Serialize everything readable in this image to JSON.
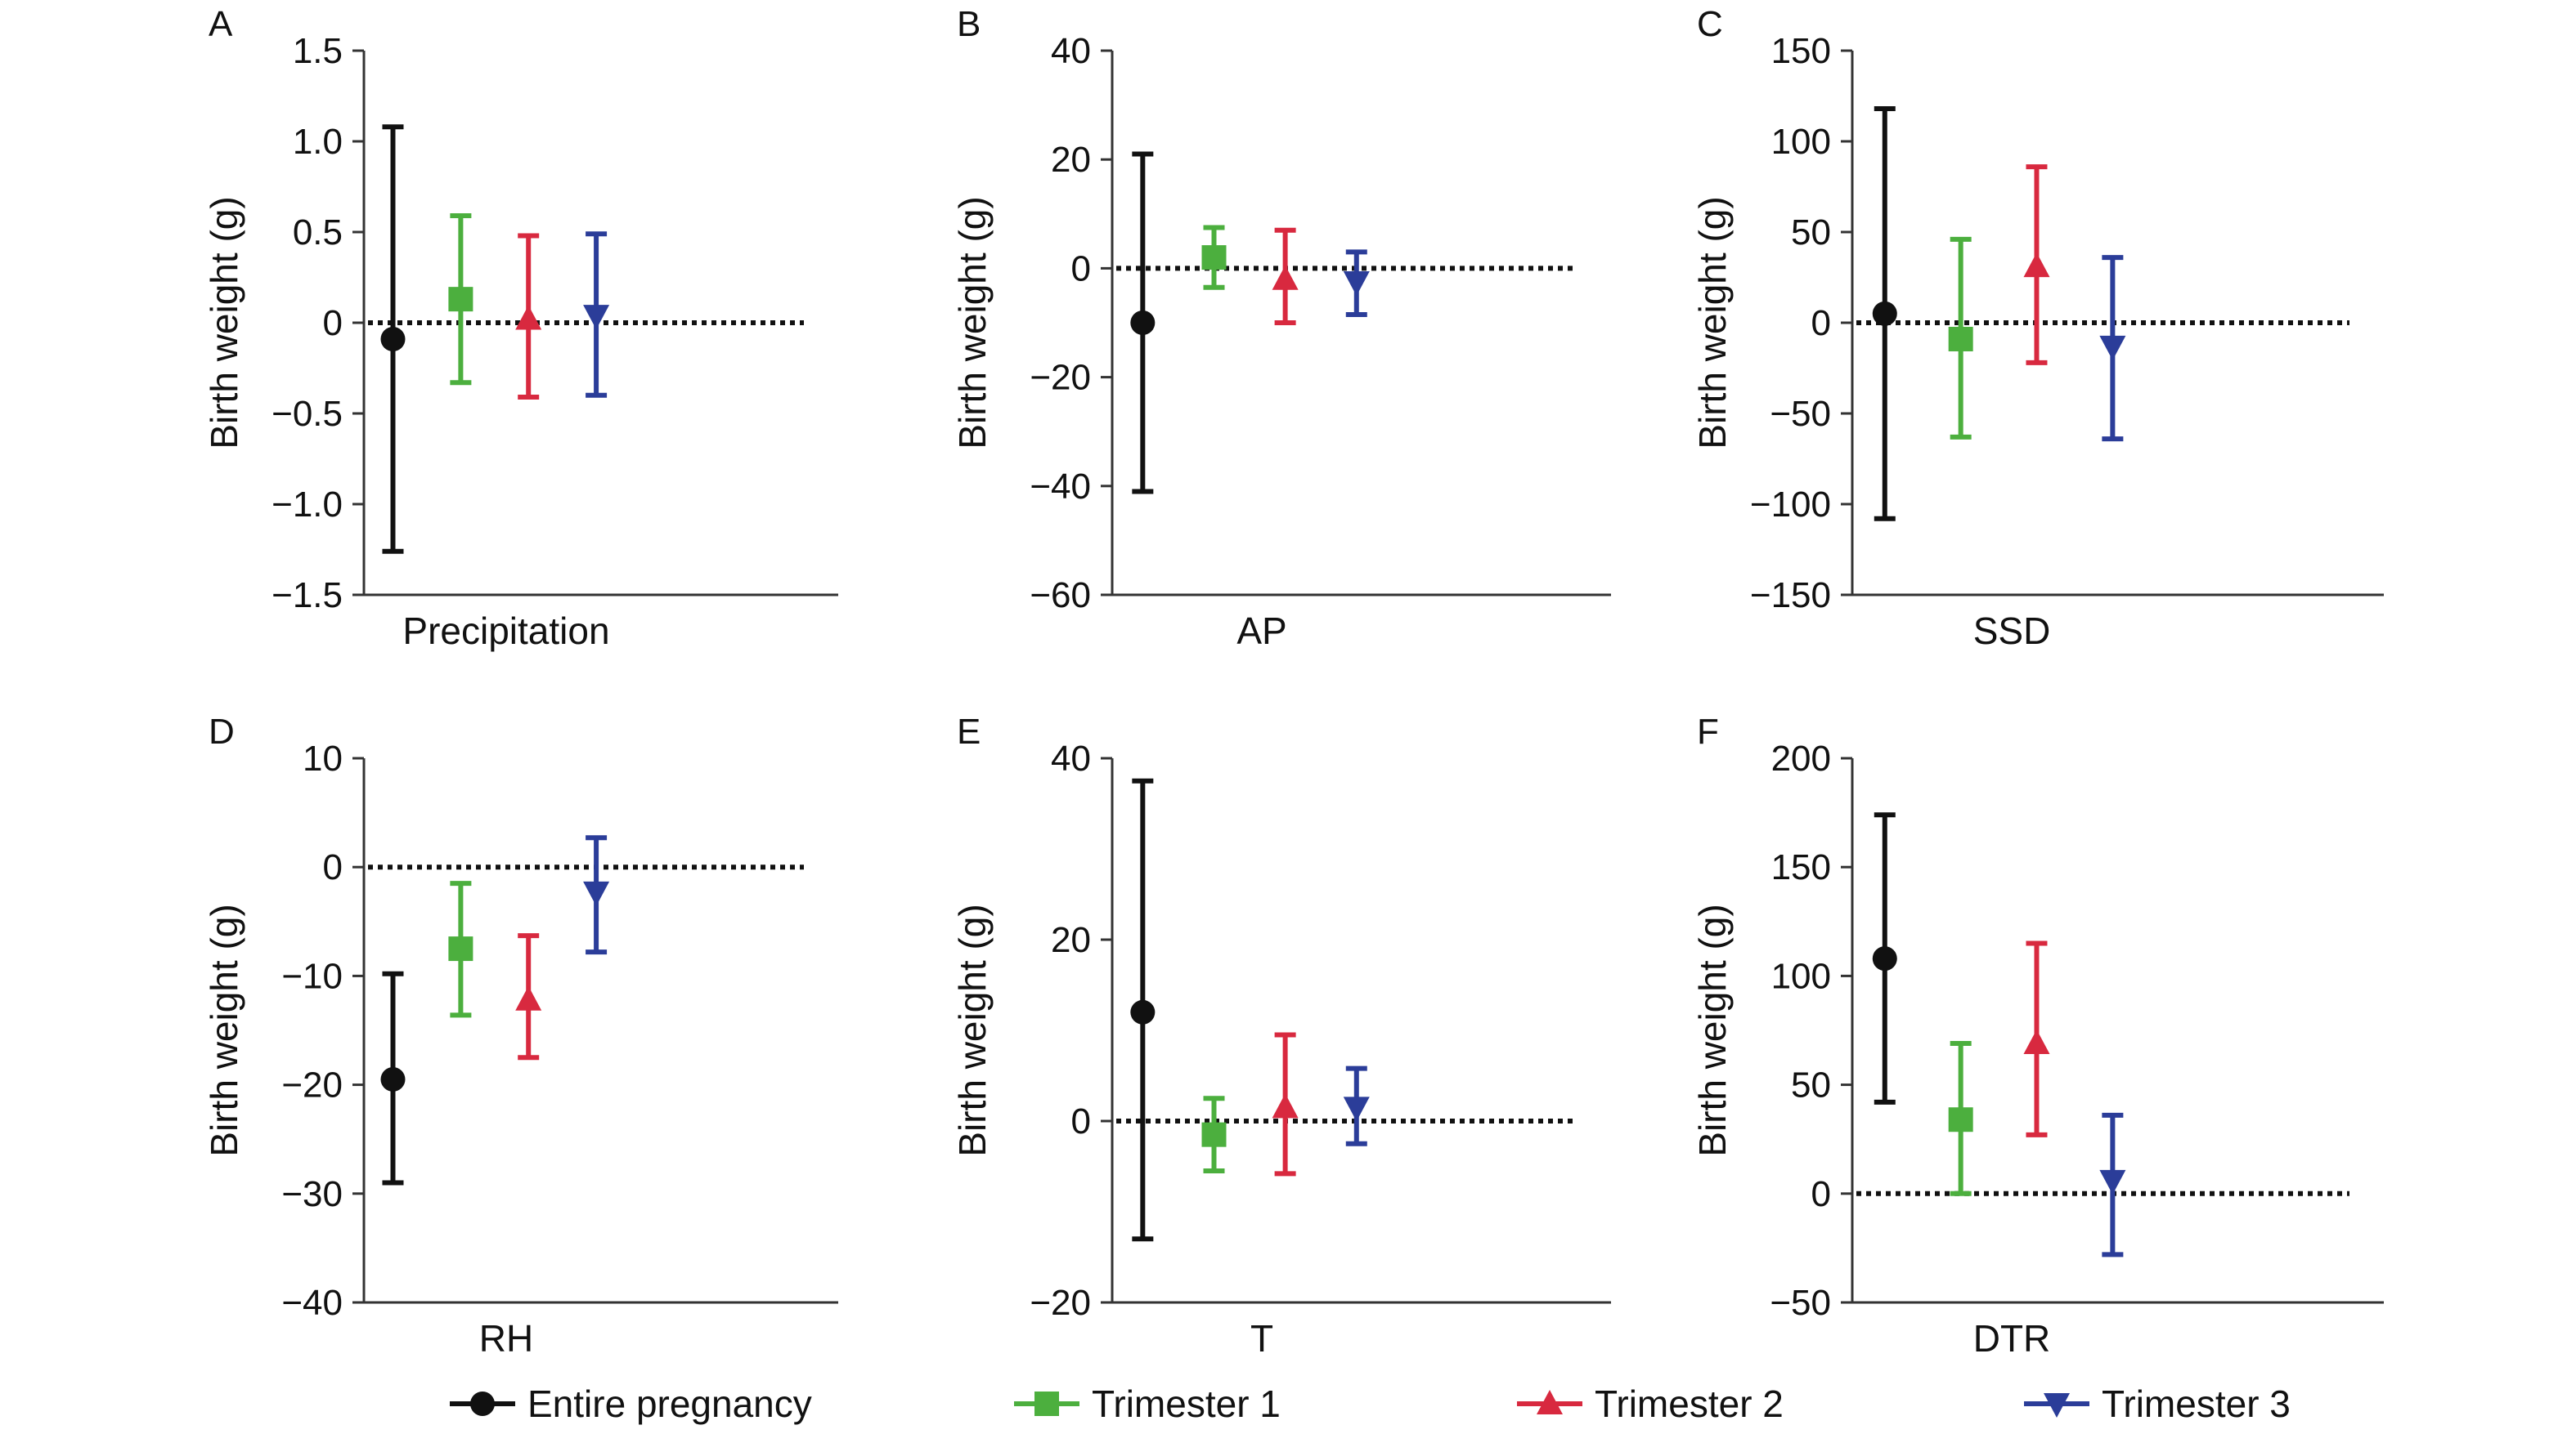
{
  "legend": [
    {
      "label": "Entire pregnancy",
      "color": "#111111",
      "marker": "circle"
    },
    {
      "label": "Trimester 1",
      "color": "#4caf3e",
      "marker": "square"
    },
    {
      "label": "Trimester 2",
      "color": "#d8293f",
      "marker": "triangle-up"
    },
    {
      "label": "Trimester 3",
      "color": "#2b3d99",
      "marker": "triangle-down"
    }
  ],
  "chart_data": [
    {
      "type": "scatter",
      "panel": "A",
      "xlabel": "Precipitation",
      "ylabel": "Birth weight (g)",
      "ylim": [
        -1.5,
        1.5
      ],
      "yticks": [
        "1.5",
        "1.0",
        "0.5",
        "0",
        "−0.5",
        "−1.0",
        "−1.5"
      ],
      "ytick_values": [
        1.5,
        1.0,
        0.5,
        0,
        -0.5,
        -1.0,
        -1.5
      ],
      "reference_line": 0,
      "series": [
        {
          "name": "Entire pregnancy",
          "estimate": -0.09,
          "lower": -1.26,
          "upper": 1.08
        },
        {
          "name": "Trimester 1",
          "estimate": 0.13,
          "lower": -0.33,
          "upper": 0.59
        },
        {
          "name": "Trimester 2",
          "estimate": 0.02,
          "lower": -0.41,
          "upper": 0.48
        },
        {
          "name": "Trimester 3",
          "estimate": 0.04,
          "lower": -0.4,
          "upper": 0.49
        }
      ]
    },
    {
      "type": "scatter",
      "panel": "B",
      "xlabel": "AP",
      "ylabel": "Birth weight (g)",
      "ylim": [
        -60,
        40
      ],
      "yticks": [
        "40",
        "20",
        "0",
        "−20",
        "−40",
        "−60"
      ],
      "ytick_values": [
        40,
        20,
        0,
        -20,
        -40,
        -60
      ],
      "reference_line": 0,
      "series": [
        {
          "name": "Entire pregnancy",
          "estimate": -10,
          "lower": -41,
          "upper": 21
        },
        {
          "name": "Trimester 1",
          "estimate": 2,
          "lower": -3.5,
          "upper": 7.5
        },
        {
          "name": "Trimester 2",
          "estimate": -2,
          "lower": -10,
          "upper": 7
        },
        {
          "name": "Trimester 3",
          "estimate": -2.5,
          "lower": -8.5,
          "upper": 3
        }
      ]
    },
    {
      "type": "scatter",
      "panel": "C",
      "xlabel": "SSD",
      "ylabel": "Birth weight (g)",
      "ylim": [
        -150,
        150
      ],
      "yticks": [
        "150",
        "100",
        "50",
        "0",
        "−50",
        "−100",
        "−150"
      ],
      "ytick_values": [
        150,
        100,
        50,
        0,
        -50,
        -100,
        -150
      ],
      "reference_line": 0,
      "series": [
        {
          "name": "Entire pregnancy",
          "estimate": 5,
          "lower": -108,
          "upper": 118
        },
        {
          "name": "Trimester 1",
          "estimate": -9,
          "lower": -63,
          "upper": 46
        },
        {
          "name": "Trimester 2",
          "estimate": 31,
          "lower": -22,
          "upper": 86
        },
        {
          "name": "Trimester 3",
          "estimate": -13,
          "lower": -64,
          "upper": 36
        }
      ]
    },
    {
      "type": "scatter",
      "panel": "D",
      "xlabel": "RH",
      "ylabel": "Birth weight (g)",
      "ylim": [
        -40,
        10
      ],
      "yticks": [
        "10",
        "0",
        "−10",
        "−20",
        "−30",
        "−40"
      ],
      "ytick_values": [
        10,
        0,
        -10,
        -20,
        -30,
        -40
      ],
      "reference_line": 0,
      "series": [
        {
          "name": "Entire pregnancy",
          "estimate": -19.5,
          "lower": -29,
          "upper": -9.8
        },
        {
          "name": "Trimester 1",
          "estimate": -7.5,
          "lower": -13.6,
          "upper": -1.5
        },
        {
          "name": "Trimester 2",
          "estimate": -12.2,
          "lower": -17.5,
          "upper": -6.3
        },
        {
          "name": "Trimester 3",
          "estimate": -2.3,
          "lower": -7.8,
          "upper": 2.7
        }
      ]
    },
    {
      "type": "scatter",
      "panel": "E",
      "xlabel": "T",
      "ylabel": "Birth weight (g)",
      "ylim": [
        -20,
        40
      ],
      "yticks": [
        "40",
        "20",
        "0",
        "−20"
      ],
      "ytick_values": [
        40,
        20,
        0,
        -20
      ],
      "reference_line": 0,
      "series": [
        {
          "name": "Entire pregnancy",
          "estimate": 12,
          "lower": -13,
          "upper": 37.5
        },
        {
          "name": "Trimester 1",
          "estimate": -1.5,
          "lower": -5.5,
          "upper": 2.5
        },
        {
          "name": "Trimester 2",
          "estimate": 1.5,
          "lower": -5.8,
          "upper": 9.5
        },
        {
          "name": "Trimester 3",
          "estimate": 1.5,
          "lower": -2.5,
          "upper": 5.8
        }
      ]
    },
    {
      "type": "scatter",
      "panel": "F",
      "xlabel": "DTR",
      "ylabel": "Birth weight (g)",
      "ylim": [
        -50,
        200
      ],
      "yticks": [
        "200",
        "150",
        "100",
        "50",
        "0",
        "−50"
      ],
      "ytick_values": [
        200,
        150,
        100,
        50,
        0,
        -50
      ],
      "reference_line": 0,
      "series": [
        {
          "name": "Entire pregnancy",
          "estimate": 108,
          "lower": 42,
          "upper": 174
        },
        {
          "name": "Trimester 1",
          "estimate": 34,
          "lower": 0,
          "upper": 69
        },
        {
          "name": "Trimester 2",
          "estimate": 69,
          "lower": 27,
          "upper": 115
        },
        {
          "name": "Trimester 3",
          "estimate": 6,
          "lower": -28,
          "upper": 36
        }
      ]
    }
  ]
}
